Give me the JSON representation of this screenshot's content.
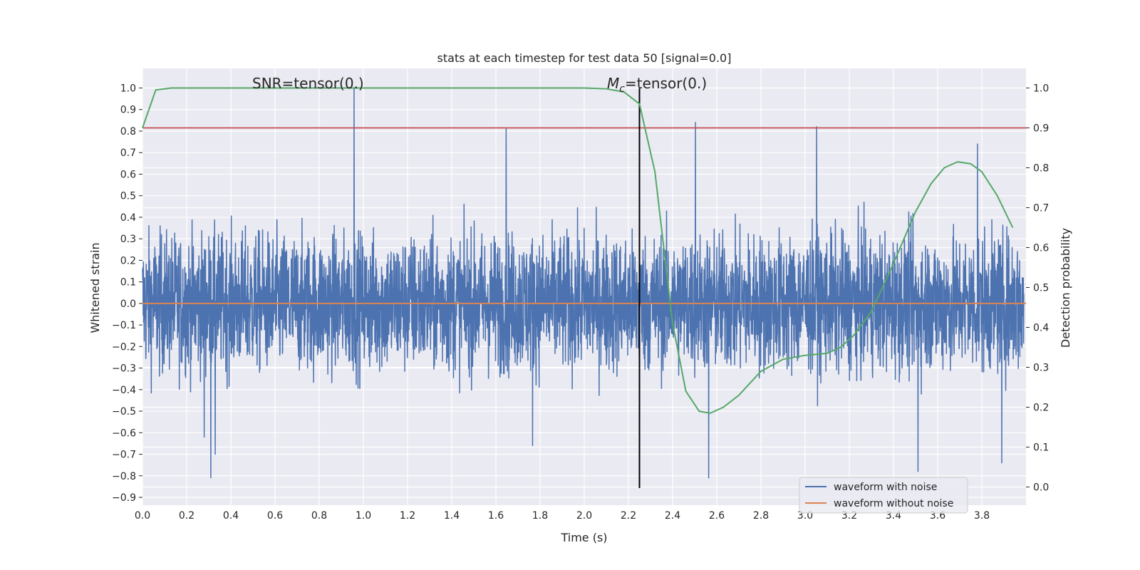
{
  "chart_data": {
    "type": "line",
    "title": "stats at each timestep for test data 50 [signal=0.0]",
    "xlabel": "Time (s)",
    "ylabel_left": "Whitened strain",
    "ylabel_right": "Detection probability",
    "xlim": [
      0.0,
      4.0
    ],
    "ylim_left": [
      -0.9,
      1.0
    ],
    "ylim_right": [
      0.0,
      1.0
    ],
    "x_ticks": [
      "0.0",
      "0.2",
      "0.4",
      "0.6",
      "0.8",
      "1.0",
      "1.2",
      "1.4",
      "1.6",
      "1.8",
      "2.0",
      "2.2",
      "2.4",
      "2.6",
      "2.8",
      "3.0",
      "3.2",
      "3.4",
      "3.6",
      "3.8"
    ],
    "y_ticks_left": [
      "1.0",
      "0.9",
      "0.8",
      "0.7",
      "0.6",
      "0.5",
      "0.4",
      "0.3",
      "0.2",
      "0.1",
      "0.0",
      "−0.1",
      "−0.2",
      "−0.3",
      "−0.4",
      "−0.5",
      "−0.6",
      "−0.7",
      "−0.8",
      "−0.9"
    ],
    "y_ticks_right": [
      "1.0",
      "0.9",
      "0.8",
      "0.7",
      "0.6",
      "0.5",
      "0.4",
      "0.3",
      "0.2",
      "0.1",
      "0.0"
    ],
    "grid": true,
    "annotations": {
      "snr": "SNR=tensor(0.)",
      "mc_symbol": "M",
      "mc_subscript": "c",
      "mc_rest": "=tensor(0.)"
    },
    "threshold": {
      "value": 0.9,
      "color": "#c44e52"
    },
    "vertical_marker_time": 2.25,
    "series": [
      {
        "name": "waveform with noise",
        "color": "#4c72b0",
        "kind": "noise",
        "spikes": [
          {
            "x": 0.96,
            "y": 1.0
          },
          {
            "x": 1.65,
            "y": 0.81
          },
          {
            "x": 2.51,
            "y": 0.84
          },
          {
            "x": 3.06,
            "y": 0.82
          },
          {
            "x": 3.79,
            "y": 0.74
          },
          {
            "x": 0.31,
            "y": -0.81
          },
          {
            "x": 2.57,
            "y": -0.81
          },
          {
            "x": 3.52,
            "y": -0.78
          },
          {
            "x": 0.33,
            "y": -0.7
          },
          {
            "x": 3.9,
            "y": -0.74
          },
          {
            "x": 1.77,
            "y": -0.66
          },
          {
            "x": 0.28,
            "y": -0.62
          }
        ]
      },
      {
        "name": "waveform without noise",
        "color": "#dd8452",
        "kind": "flat",
        "value": 0.0
      },
      {
        "name": "detection probability",
        "color": "#55a868",
        "axis": "right",
        "x": [
          0.0,
          0.06,
          0.13,
          0.2,
          0.5,
          1.0,
          1.5,
          2.0,
          2.1,
          2.18,
          2.25,
          2.32,
          2.4,
          2.46,
          2.52,
          2.57,
          2.63,
          2.7,
          2.8,
          2.9,
          3.0,
          3.1,
          3.16,
          3.22,
          3.3,
          3.4,
          3.5,
          3.57,
          3.63,
          3.69,
          3.75,
          3.8,
          3.87,
          3.94
        ],
        "y": [
          0.9,
          0.995,
          1.0,
          1.0,
          1.0,
          1.0,
          1.0,
          1.0,
          0.998,
          0.99,
          0.96,
          0.79,
          0.41,
          0.24,
          0.19,
          0.185,
          0.2,
          0.23,
          0.29,
          0.32,
          0.33,
          0.335,
          0.35,
          0.38,
          0.44,
          0.56,
          0.69,
          0.76,
          0.8,
          0.815,
          0.81,
          0.79,
          0.73,
          0.65
        ]
      }
    ]
  }
}
